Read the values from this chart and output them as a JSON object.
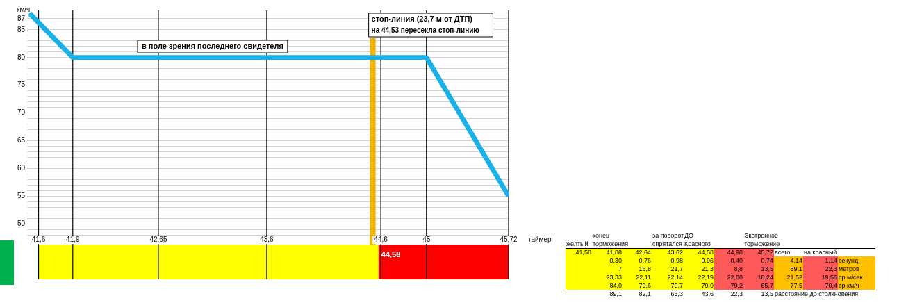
{
  "chart_data": [
    {
      "type": "line",
      "xlabel": "таймер",
      "ylabel": "км/ч",
      "xlim": [
        41.5,
        45.72
      ],
      "ylim": [
        40,
        88.5
      ],
      "xticks": [
        {
          "value": 41.6,
          "label": "41,6"
        },
        {
          "value": 41.9,
          "label": "41,9"
        },
        {
          "value": 42.65,
          "label": "42,65"
        },
        {
          "value": 43.6,
          "label": "43,6"
        },
        {
          "value": 44.6,
          "label": "44,6"
        },
        45,
        {
          "value": 45.72,
          "label": "45,72"
        }
      ],
      "yticks": [
        {
          "value": 48,
          "label": null
        },
        {
          "value": 49,
          "label": null
        },
        50,
        {
          "value": 51,
          "label": null
        },
        {
          "value": 52,
          "label": null
        },
        {
          "value": 53,
          "label": null
        },
        {
          "value": 54,
          "label": null
        },
        55,
        {
          "value": 56,
          "label": null
        },
        {
          "value": 57,
          "label": null
        },
        {
          "value": 58,
          "label": null
        },
        {
          "value": 59,
          "label": null
        },
        60,
        {
          "value": 61,
          "label": null
        },
        {
          "value": 62,
          "label": null
        },
        {
          "value": 63,
          "label": null
        },
        {
          "value": 64,
          "label": null
        },
        65,
        {
          "value": 66,
          "label": null
        },
        {
          "value": 67,
          "label": null
        },
        {
          "value": 68,
          "label": null
        },
        {
          "value": 69,
          "label": null
        },
        70,
        {
          "value": 71,
          "label": null
        },
        {
          "value": 72,
          "label": null
        },
        {
          "value": 73,
          "label": null
        },
        {
          "value": 74,
          "label": null
        },
        75,
        {
          "value": 76,
          "label": null
        },
        {
          "value": 77,
          "label": null
        },
        {
          "value": 78,
          "label": null
        },
        {
          "value": 79,
          "label": null
        },
        80,
        {
          "value": 81,
          "label": null
        },
        {
          "value": 82,
          "label": null
        },
        {
          "value": 83,
          "label": null
        },
        {
          "value": 84,
          "label": null
        },
        85,
        {
          "value": 86,
          "label": null
        },
        87,
        {
          "value": 88,
          "label": null
        }
      ],
      "grid": true,
      "legend": false,
      "series": [
        {
          "color": "#1ab0e8",
          "x": [
            41.52,
            41.9,
            45,
            45.72
          ],
          "values": [
            88,
            80,
            80,
            55
          ]
        }
      ],
      "ref_lines": [
        {
          "axis": "x",
          "value": 44.53,
          "label": "стоп-линия (23,7 м от ДТП)",
          "color": "#f5b400"
        }
      ],
      "bands": [
        {
          "axis": "x",
          "from": 41.6,
          "to": 44.58,
          "label": null,
          "color": "#ffff00"
        },
        {
          "axis": "x",
          "from": 44.58,
          "to": 45.72,
          "label": "44,58",
          "color": "#ff0000"
        }
      ],
      "annotations": [
        "на 44,53 пересекла стоп-линию",
        "в поле зрения последнего свидетеля"
      ]
    },
    {
      "type": "other",
      "cell_labels": [
        [
          null,
          "конец",
          null,
          "за поворот",
          "ДО",
          null,
          "Экстренное",
          null,
          null,
          null
        ],
        [
          "желтый",
          "торможения",
          null,
          "спрятался",
          "Красного",
          null,
          "торможение",
          null,
          null,
          null
        ],
        [
          "41,58",
          "41,88",
          "42,64",
          "43,62",
          "44,58",
          "44,98",
          "45,72",
          "всего",
          "на красный",
          null
        ],
        [
          null,
          "0,30",
          "0,76",
          "0,98",
          "0,96",
          "0,40",
          "0,74",
          "4,14",
          "1,14",
          "секунд"
        ],
        [
          null,
          "7",
          "16,8",
          "21,7",
          "21,3",
          "8,8",
          "13,5",
          "89,1",
          "22,3",
          "метров"
        ],
        [
          null,
          "23,33",
          "22,11",
          "22,14",
          "22,19",
          "22,00",
          "18,24",
          "21,52",
          "19,56",
          "ср.м/сек"
        ],
        [
          null,
          "84,0",
          "79,6",
          "79,7",
          "79,9",
          "79,2",
          "65,7",
          "77,5",
          "70,4",
          "ср.км/ч"
        ],
        [
          null,
          "89,1",
          "82,1",
          "65,3",
          "43,6",
          "22,3",
          "13,5",
          "расстояние до столкновения",
          null,
          null
        ]
      ],
      "colors": [
        [
          "#ffffff",
          "#ffffff",
          "#ffffff",
          "#ffffff",
          "#ffffff",
          "#ffffff",
          "#ffffff"
        ],
        [
          "#ffffff",
          "#ffffff",
          "#ffffff",
          "#ffffff",
          "#ffffff",
          "#ffffff",
          "#ffffff"
        ],
        [
          "#ffff00",
          "#ffff00",
          "#ffff00",
          "#ffff00",
          "#ffff00",
          "#ff5a5a",
          "#ff5a5a",
          "#ffffff",
          "#ffffff"
        ],
        [
          "#ffff00",
          "#ffff00",
          "#ffff00",
          "#ffff00",
          "#ffff00",
          "#ff5a5a",
          "#ff5a5a",
          "#ffc000",
          "#ff5a5a",
          "#ffc000"
        ],
        [
          "#ffff00",
          "#ffff00",
          "#ffff00",
          "#ffff00",
          "#ffff00",
          "#ff5a5a",
          "#ff5a5a",
          "#ffc000",
          "#ff5a5a",
          "#ffc000"
        ],
        [
          "#ffff00",
          "#ffff00",
          "#ffff00",
          "#ffff00",
          "#ffff00",
          "#ff5a5a",
          "#ff5a5a",
          "#ffc000",
          "#ff5a5a",
          "#ffc000"
        ],
        [
          "#ffff00",
          "#ffff00",
          "#ffff00",
          "#ffff00",
          "#ffff00",
          "#ff5a5a",
          "#ff5a5a",
          "#ffc000",
          "#ff5a5a",
          "#ffc000"
        ],
        [
          "#ffffff",
          "#ffffff",
          "#ffffff",
          "#ffffff",
          "#ffffff",
          "#ffffff",
          "#ffffff",
          "#ffffff"
        ]
      ]
    }
  ]
}
